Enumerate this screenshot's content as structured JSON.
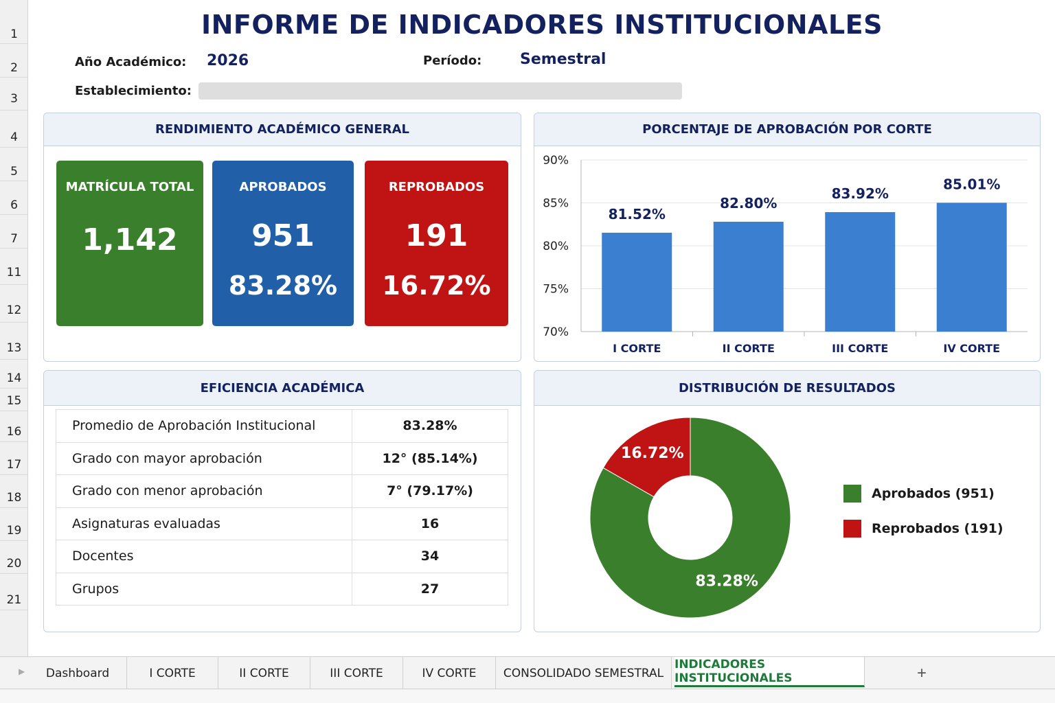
{
  "title": "INFORME DE INDICADORES INSTITUCIONALES",
  "rows": [
    "1",
    "2",
    "3",
    "4",
    "5",
    "6",
    "7",
    "11",
    "12",
    "13",
    "14",
    "15",
    "16",
    "17",
    "18",
    "19",
    "20",
    "21"
  ],
  "info": {
    "year_label": "Año Académico:",
    "year_value": "2026",
    "period_label": "Período:",
    "period_value": "Semestral",
    "establishment_label": "Establecimiento:",
    "establishment_value": ""
  },
  "rendimiento": {
    "title": "RENDIMIENTO ACADÉMICO GENERAL",
    "matricula": {
      "label": "MATRÍCULA TOTAL",
      "value": "1,142",
      "color": "#3a7f2c"
    },
    "aprobados": {
      "label": "APROBADOS",
      "value": "951",
      "pct": "83.28%",
      "color": "#2160a8"
    },
    "reprobados": {
      "label": "REPROBADOS",
      "value": "191",
      "pct": "16.72%",
      "color": "#c01313"
    }
  },
  "aprobacion_panel": {
    "title": "PORCENTAJE DE APROBACIÓN POR CORTE"
  },
  "eficiencia": {
    "title": "EFICIENCIA ACADÉMICA",
    "rows": [
      {
        "label": "Promedio de Aprobación Institucional",
        "value": "83.28%"
      },
      {
        "label": "Grado con mayor aprobación",
        "value": "12° (85.14%)"
      },
      {
        "label": "Grado con menor aprobación",
        "value": "7° (79.17%)"
      },
      {
        "label": "Asignaturas evaluadas",
        "value": "16"
      },
      {
        "label": "Docentes",
        "value": "34"
      },
      {
        "label": "Grupos",
        "value": "27"
      }
    ]
  },
  "distribucion": {
    "title": "DISTRIBUCIÓN DE RESULTADOS",
    "legend": [
      {
        "label": "Aprobados (951)",
        "color": "#3a7f2c"
      },
      {
        "label": "Reprobados (191)",
        "color": "#c01313"
      }
    ]
  },
  "chart_data": [
    {
      "type": "bar",
      "title": "PORCENTAJE DE APROBACIÓN POR CORTE",
      "categories": [
        "I CORTE",
        "II CORTE",
        "III CORTE",
        "IV CORTE"
      ],
      "values": [
        81.52,
        82.8,
        83.92,
        85.01
      ],
      "data_labels": [
        "81.52%",
        "82.80%",
        "83.92%",
        "85.01%"
      ],
      "yticks": [
        "70%",
        "75%",
        "80%",
        "85%",
        "90%"
      ],
      "ylim": [
        70,
        90
      ],
      "grid": true,
      "color": "#3b7fd0"
    },
    {
      "type": "pie",
      "title": "DISTRIBUCIÓN DE RESULTADOS",
      "categories": [
        "Aprobados",
        "Reprobados"
      ],
      "values": [
        83.28,
        16.72
      ],
      "data_labels": [
        "83.28%",
        "16.72%"
      ],
      "colors": [
        "#3a7f2c",
        "#c01313"
      ],
      "donut": true
    }
  ],
  "tabs": [
    {
      "label": "Dashboard"
    },
    {
      "label": "I CORTE"
    },
    {
      "label": "II CORTE"
    },
    {
      "label": "III CORTE"
    },
    {
      "label": "IV CORTE"
    },
    {
      "label": "CONSOLIDADO SEMESTRAL"
    },
    {
      "label": "INDICADORES INSTITUCIONALES",
      "active": true
    }
  ],
  "add_tab_label": "+"
}
